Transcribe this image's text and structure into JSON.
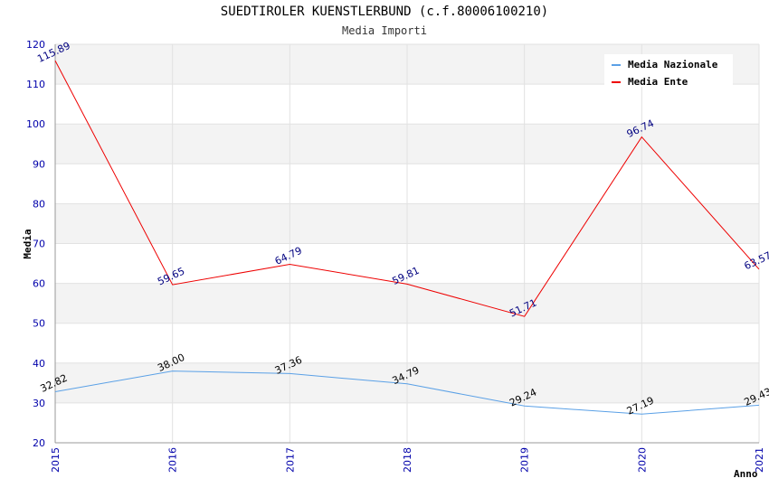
{
  "chart_data": {
    "type": "line",
    "title": "SUEDTIROLER KUENSTLERBUND (c.f.80006100210)",
    "subtitle": "Media Importi",
    "xlabel": "Anno",
    "ylabel": "Media",
    "categories": [
      "2015",
      "2016",
      "2017",
      "2018",
      "2019",
      "2020",
      "2021"
    ],
    "ylim": [
      20,
      120
    ],
    "yticks": [
      20,
      30,
      40,
      50,
      60,
      70,
      80,
      90,
      100,
      110,
      120
    ],
    "legend_position": "top-right",
    "series": [
      {
        "name": "Media Nazionale",
        "color": "#5aa0e6",
        "label_color": "#000000",
        "values": [
          32.82,
          38.0,
          37.36,
          34.79,
          29.24,
          27.19,
          29.43
        ],
        "labels": [
          "32.82",
          "38.00",
          "37.36",
          "34.79",
          "29.24",
          "27.19",
          "29.43"
        ]
      },
      {
        "name": "Media Ente",
        "color": "#ee0000",
        "label_color": "#000080",
        "values": [
          115.89,
          59.65,
          64.79,
          59.81,
          51.71,
          96.74,
          63.57
        ],
        "labels": [
          "115.89",
          "59.65",
          "64.79",
          "59.81",
          "51.71",
          "96.74",
          "63.57"
        ]
      }
    ]
  }
}
